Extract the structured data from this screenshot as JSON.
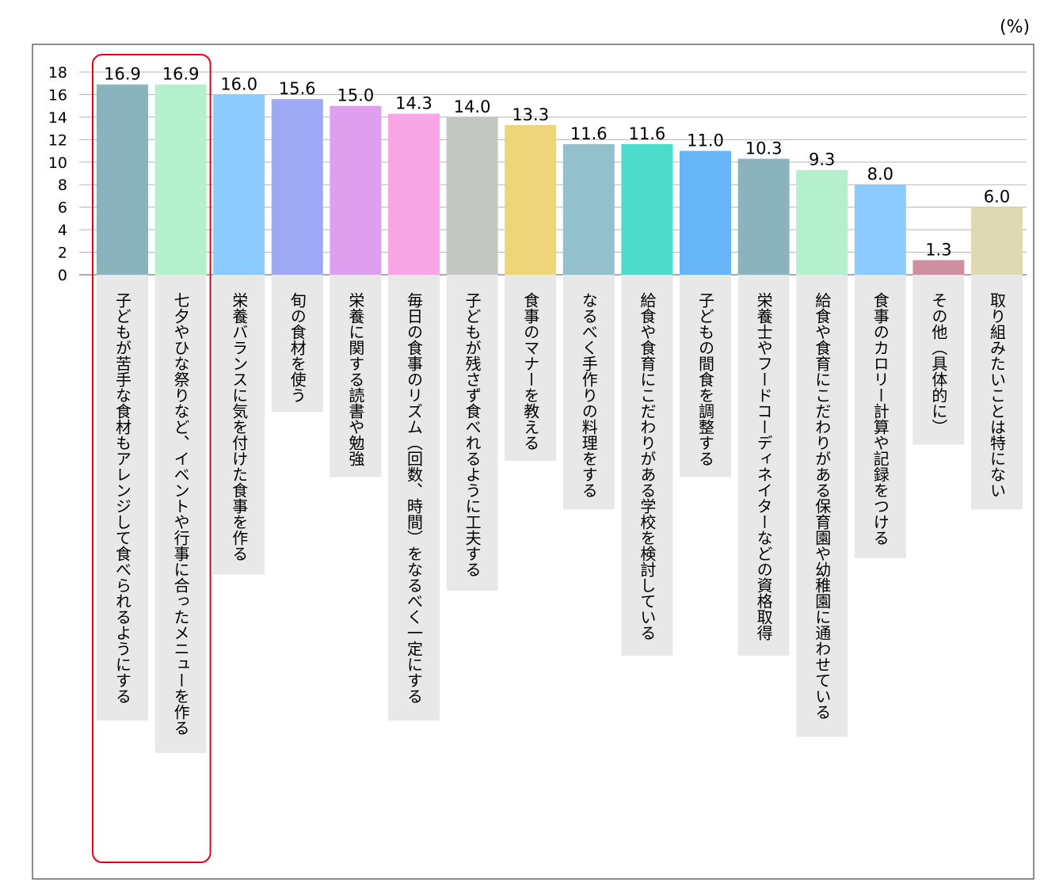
{
  "chart_data": {
    "type": "bar",
    "unit": "(%)",
    "categories": [
      "子どもが苦手な食材もアレンジして食べられるようにする",
      "七夕やひな祭りなど、イベントや行事に合ったメニューを作る",
      "栄養バランスに気を付けた食事を作る",
      "旬の食材を使う",
      "栄養に関する読書や勉強",
      "毎日の食事のリズム（回数、時間）をなるべく一定にする",
      "子どもが残さず食べれるように工夫する",
      "食事のマナーを教える",
      "なるべく手作りの料理をする",
      "給食や食育にこだわりがある学校を検討している",
      "子どもの間食を調整する",
      "栄養士やフードコーディネイターなどの資格取得",
      "給食や食育にこだわりがある保育園や幼稚園に通わせている",
      "食事のカロリー計算や記録をつける",
      "その他（具体的に）",
      "取り組みたいことは特にない"
    ],
    "values": [
      16.9,
      16.9,
      16.0,
      15.6,
      15.0,
      14.3,
      14.0,
      13.3,
      11.6,
      11.6,
      11.0,
      10.3,
      9.3,
      8.0,
      1.3,
      6.0
    ],
    "value_labels": [
      "16.9",
      "16.9",
      "16.0",
      "15.6",
      "15.0",
      "14.3",
      "14.0",
      "13.3",
      "11.6",
      "11.6",
      "11.0",
      "10.3",
      "9.3",
      "8.0",
      "1.3",
      "6.0"
    ],
    "colors": [
      "#8ab3bd",
      "#b3f0cb",
      "#8ccbff",
      "#9ea9f5",
      "#df9fef",
      "#f9a6e6",
      "#c3c7c1",
      "#edd67a",
      "#94c0cc",
      "#4ddccb",
      "#66b5f6",
      "#8ab3bd",
      "#b3f0cb",
      "#8ccbff",
      "#cf8fa2",
      "#dfd9b3"
    ],
    "yticks": [
      0,
      2,
      4,
      6,
      8,
      10,
      12,
      14,
      16,
      18
    ],
    "ylim": [
      0,
      18
    ],
    "grid": true,
    "highlight": {
      "categories": [
        0,
        1
      ],
      "color": "#e60012"
    }
  }
}
